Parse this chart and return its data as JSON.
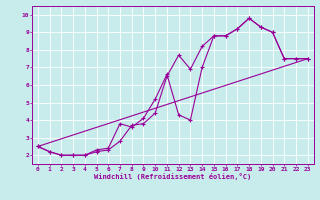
{
  "xlabel": "Windchill (Refroidissement éolien,°C)",
  "ylabel": "",
  "bg_color": "#c8ecec",
  "line_color": "#990099",
  "grid_color": "#ffffff",
  "axis_color": "#666666",
  "series1": [
    [
      0,
      2.5
    ],
    [
      1,
      2.2
    ],
    [
      2,
      2.0
    ],
    [
      3,
      2.0
    ],
    [
      4,
      2.0
    ],
    [
      5,
      2.2
    ],
    [
      6,
      2.3
    ],
    [
      7,
      2.8
    ],
    [
      8,
      3.7
    ],
    [
      9,
      3.8
    ],
    [
      10,
      4.4
    ],
    [
      11,
      6.5
    ],
    [
      12,
      7.7
    ],
    [
      13,
      6.9
    ],
    [
      14,
      8.2
    ],
    [
      15,
      8.8
    ],
    [
      16,
      8.8
    ],
    [
      17,
      9.2
    ],
    [
      18,
      9.8
    ],
    [
      19,
      9.3
    ],
    [
      20,
      9.0
    ],
    [
      21,
      7.5
    ],
    [
      22,
      7.5
    ],
    [
      23,
      7.5
    ]
  ],
  "series2": [
    [
      0,
      2.5
    ],
    [
      1,
      2.2
    ],
    [
      2,
      2.0
    ],
    [
      3,
      2.0
    ],
    [
      4,
      2.0
    ],
    [
      5,
      2.3
    ],
    [
      6,
      2.4
    ],
    [
      7,
      3.8
    ],
    [
      8,
      3.6
    ],
    [
      9,
      4.1
    ],
    [
      10,
      5.2
    ],
    [
      11,
      6.6
    ],
    [
      12,
      4.3
    ],
    [
      13,
      4.0
    ],
    [
      14,
      7.0
    ],
    [
      15,
      8.8
    ],
    [
      16,
      8.8
    ],
    [
      17,
      9.2
    ],
    [
      18,
      9.8
    ],
    [
      19,
      9.3
    ],
    [
      20,
      9.0
    ],
    [
      21,
      7.5
    ],
    [
      22,
      7.5
    ],
    [
      23,
      7.5
    ]
  ],
  "series3": [
    [
      0,
      2.5
    ],
    [
      23,
      7.5
    ]
  ],
  "xlim": [
    -0.5,
    23.5
  ],
  "ylim": [
    1.5,
    10.5
  ],
  "xticks": [
    0,
    1,
    2,
    3,
    4,
    5,
    6,
    7,
    8,
    9,
    10,
    11,
    12,
    13,
    14,
    15,
    16,
    17,
    18,
    19,
    20,
    21,
    22,
    23
  ],
  "yticks": [
    2,
    3,
    4,
    5,
    6,
    7,
    8,
    9,
    10
  ],
  "tick_fontsize": 4.5,
  "xlabel_fontsize": 5.0
}
